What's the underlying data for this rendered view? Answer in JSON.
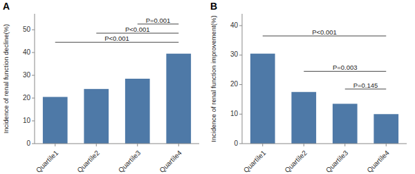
{
  "chart_data": [
    {
      "type": "bar",
      "title": "A",
      "categories": [
        "Quartile1",
        "Quartile2",
        "Quartile3",
        "Quartile4"
      ],
      "values": [
        20.5,
        24.0,
        28.5,
        39.5
      ],
      "ylabel": "Incidence of renal function decline(%)",
      "ylim": [
        0,
        57
      ],
      "yticks": [
        0,
        10,
        20,
        30,
        40,
        50
      ],
      "color": "#4e79a7",
      "grid": false,
      "annotations": [
        {
          "x1": "Quartile1",
          "x2": "Quartile4",
          "y": 44.5,
          "label": "P<0.001"
        },
        {
          "x1": "Quartile2",
          "x2": "Quartile4",
          "y": 48.5,
          "label": "P<0.001"
        },
        {
          "x1": "Quartile3",
          "x2": "Quartile4",
          "y": 52.5,
          "label": "P=0.001"
        }
      ]
    },
    {
      "type": "bar",
      "title": "B",
      "categories": [
        "Quartile1",
        "Quartile2",
        "Quartile3",
        "Quartile4"
      ],
      "values": [
        30.5,
        17.5,
        13.5,
        10.0
      ],
      "ylabel": "Incidence of renal function improvement(%)",
      "ylim": [
        0,
        44
      ],
      "yticks": [
        0,
        10,
        20,
        30,
        40
      ],
      "color": "#4e79a7",
      "grid": false,
      "annotations": [
        {
          "x1": "Quartile1",
          "x2": "Quartile4",
          "y": 36.5,
          "label": "P<0.001"
        },
        {
          "x1": "Quartile2",
          "x2": "Quartile4",
          "y": 24.5,
          "label": "P=0.003"
        },
        {
          "x1": "Quartile3",
          "x2": "Quartile4",
          "y": 18.5,
          "label": "P=0.145"
        }
      ]
    }
  ]
}
